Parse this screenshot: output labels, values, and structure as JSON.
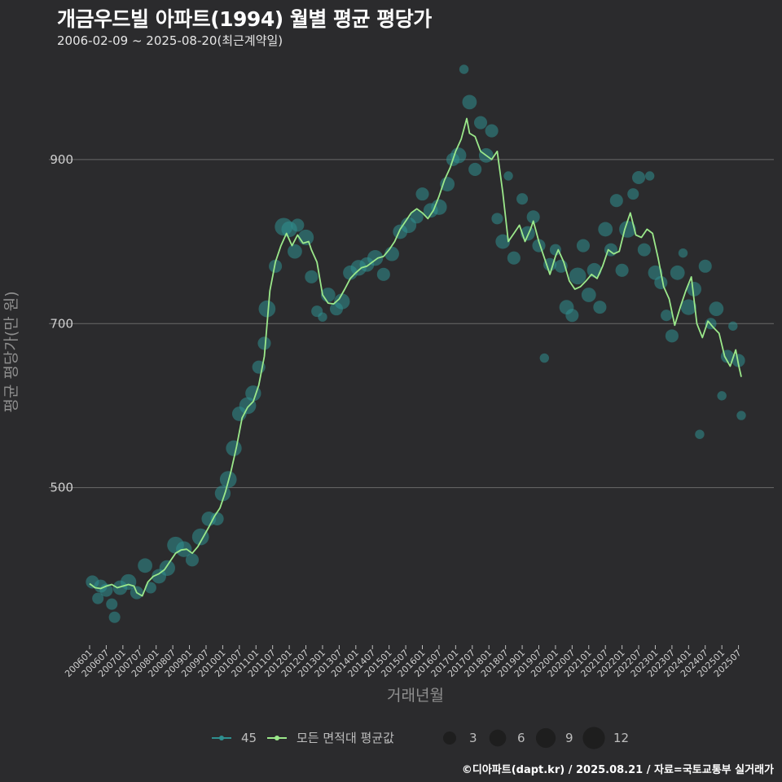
{
  "header": {
    "title": "개금우드빌 아파트(1994) 월별 평균 평당가",
    "subtitle": "2006-02-09 ~ 2025-08-20(최근계약일)"
  },
  "caption": "©디아파트(dapt.kr) / 2025.08.21 / 자료=국토교통부 실거래가",
  "colors": {
    "background": "#2b2b2d",
    "grid": "#6a6a6a",
    "series_area": "#2f8f8f",
    "series_all": "#9be88a",
    "legend_size": "#1e1e1e"
  },
  "chart_data": {
    "type": "line",
    "title": "개금우드빌 아파트(1994) 월별 평균 평당가",
    "xlabel": "거래년월",
    "ylabel": "평균 평당가(만 원)",
    "ylim": [
      310,
      1020
    ],
    "yticks": [
      500,
      700,
      900
    ],
    "grid": true,
    "x_start": "2006-01",
    "x_end": "2025-08",
    "xticks": [
      "200601",
      "200607",
      "200701",
      "200707",
      "200801",
      "200807",
      "200901",
      "200907",
      "201001",
      "201007",
      "201101",
      "201107",
      "201201",
      "201207",
      "201301",
      "201307",
      "201401",
      "201407",
      "201501",
      "201507",
      "201601",
      "201607",
      "201701",
      "201707",
      "201801",
      "201807",
      "201901",
      "201907",
      "202001",
      "202007",
      "202101",
      "202107",
      "202201",
      "202207",
      "202301",
      "202307",
      "202401",
      "202407",
      "202501",
      "202507"
    ],
    "legend_placement": "bottom",
    "series": [
      {
        "name": "45",
        "kind": "points",
        "note": "monthly transactions, marker size = number of trades",
        "points": [
          [
            "2006-02",
            385,
            3
          ],
          [
            "2006-04",
            365,
            2
          ],
          [
            "2006-05",
            380,
            3
          ],
          [
            "2006-07",
            375,
            3
          ],
          [
            "2006-09",
            358,
            2
          ],
          [
            "2006-10",
            342,
            2
          ],
          [
            "2006-12",
            378,
            4
          ],
          [
            "2007-03",
            385,
            5
          ],
          [
            "2007-06",
            372,
            3
          ],
          [
            "2007-09",
            405,
            4
          ],
          [
            "2007-11",
            378,
            2
          ],
          [
            "2008-02",
            392,
            4
          ],
          [
            "2008-05",
            402,
            5
          ],
          [
            "2008-08",
            430,
            6
          ],
          [
            "2008-11",
            425,
            5
          ],
          [
            "2009-02",
            412,
            3
          ],
          [
            "2009-05",
            440,
            6
          ],
          [
            "2009-08",
            462,
            4
          ],
          [
            "2009-11",
            462,
            3
          ],
          [
            "2010-01",
            493,
            5
          ],
          [
            "2010-03",
            510,
            6
          ],
          [
            "2010-05",
            548,
            5
          ],
          [
            "2010-07",
            590,
            4
          ],
          [
            "2010-10",
            600,
            6
          ],
          [
            "2010-12",
            615,
            5
          ],
          [
            "2011-02",
            647,
            3
          ],
          [
            "2011-04",
            676,
            3
          ],
          [
            "2011-05",
            718,
            6
          ],
          [
            "2011-08",
            770,
            3
          ],
          [
            "2011-11",
            818,
            7
          ],
          [
            "2012-01",
            815,
            5
          ],
          [
            "2012-03",
            788,
            4
          ],
          [
            "2012-04",
            820,
            3
          ],
          [
            "2012-07",
            805,
            5
          ],
          [
            "2012-09",
            757,
            3
          ],
          [
            "2012-11",
            715,
            2
          ],
          [
            "2013-01",
            708,
            1
          ],
          [
            "2013-03",
            735,
            4
          ],
          [
            "2013-06",
            718,
            3
          ],
          [
            "2013-08",
            727,
            5
          ],
          [
            "2013-11",
            762,
            4
          ],
          [
            "2014-02",
            768,
            5
          ],
          [
            "2014-05",
            772,
            4
          ],
          [
            "2014-08",
            780,
            5
          ],
          [
            "2014-11",
            760,
            3
          ],
          [
            "2015-02",
            785,
            4
          ],
          [
            "2015-05",
            812,
            4
          ],
          [
            "2015-08",
            820,
            5
          ],
          [
            "2015-11",
            830,
            3
          ],
          [
            "2016-01",
            858,
            3
          ],
          [
            "2016-04",
            838,
            4
          ],
          [
            "2016-07",
            842,
            5
          ],
          [
            "2016-10",
            870,
            4
          ],
          [
            "2016-12",
            900,
            3
          ],
          [
            "2017-02",
            905,
            5
          ],
          [
            "2017-04",
            1010,
            1
          ],
          [
            "2017-06",
            970,
            4
          ],
          [
            "2017-08",
            888,
            3
          ],
          [
            "2017-10",
            945,
            3
          ],
          [
            "2017-12",
            905,
            4
          ],
          [
            "2018-02",
            935,
            3
          ],
          [
            "2018-04",
            828,
            2
          ],
          [
            "2018-06",
            800,
            4
          ],
          [
            "2018-08",
            880,
            1
          ],
          [
            "2018-10",
            780,
            3
          ],
          [
            "2019-01",
            852,
            2
          ],
          [
            "2019-03",
            810,
            4
          ],
          [
            "2019-05",
            830,
            3
          ],
          [
            "2019-07",
            795,
            3
          ],
          [
            "2019-09",
            658,
            1
          ],
          [
            "2019-11",
            772,
            3
          ],
          [
            "2020-01",
            790,
            2
          ],
          [
            "2020-03",
            770,
            3
          ],
          [
            "2020-05",
            720,
            4
          ],
          [
            "2020-07",
            710,
            3
          ],
          [
            "2020-09",
            758,
            6
          ],
          [
            "2020-11",
            795,
            3
          ],
          [
            "2021-01",
            735,
            4
          ],
          [
            "2021-03",
            765,
            4
          ],
          [
            "2021-05",
            720,
            3
          ],
          [
            "2021-07",
            815,
            4
          ],
          [
            "2021-09",
            790,
            3
          ],
          [
            "2021-11",
            850,
            3
          ],
          [
            "2022-01",
            765,
            3
          ],
          [
            "2022-03",
            815,
            6
          ],
          [
            "2022-05",
            858,
            2
          ],
          [
            "2022-07",
            878,
            3
          ],
          [
            "2022-09",
            790,
            3
          ],
          [
            "2022-11",
            880,
            1
          ],
          [
            "2023-01",
            762,
            4
          ],
          [
            "2023-03",
            750,
            3
          ],
          [
            "2023-05",
            710,
            2
          ],
          [
            "2023-07",
            685,
            3
          ],
          [
            "2023-09",
            762,
            4
          ],
          [
            "2023-11",
            786,
            1
          ],
          [
            "2024-01",
            720,
            5
          ],
          [
            "2024-03",
            742,
            4
          ],
          [
            "2024-05",
            565,
            1
          ],
          [
            "2024-07",
            770,
            3
          ],
          [
            "2024-09",
            700,
            2
          ],
          [
            "2024-11",
            718,
            4
          ],
          [
            "2025-01",
            612,
            1
          ],
          [
            "2025-03",
            660,
            3
          ],
          [
            "2025-05",
            697,
            1
          ],
          [
            "2025-07",
            655,
            3
          ],
          [
            "2025-08",
            588,
            1
          ]
        ]
      },
      {
        "name": "모든 면적대 평균값",
        "kind": "line",
        "points": [
          [
            "2006-01",
            383
          ],
          [
            "2006-03",
            378
          ],
          [
            "2006-05",
            377
          ],
          [
            "2006-07",
            380
          ],
          [
            "2006-09",
            382
          ],
          [
            "2006-11",
            378
          ],
          [
            "2007-01",
            380
          ],
          [
            "2007-03",
            382
          ],
          [
            "2007-05",
            380
          ],
          [
            "2007-06",
            372
          ],
          [
            "2007-08",
            368
          ],
          [
            "2007-10",
            385
          ],
          [
            "2007-12",
            392
          ],
          [
            "2008-02",
            395
          ],
          [
            "2008-04",
            400
          ],
          [
            "2008-06",
            410
          ],
          [
            "2008-08",
            420
          ],
          [
            "2008-10",
            424
          ],
          [
            "2008-12",
            425
          ],
          [
            "2009-02",
            420
          ],
          [
            "2009-04",
            428
          ],
          [
            "2009-06",
            440
          ],
          [
            "2009-08",
            452
          ],
          [
            "2009-10",
            465
          ],
          [
            "2009-12",
            475
          ],
          [
            "2010-02",
            495
          ],
          [
            "2010-04",
            520
          ],
          [
            "2010-06",
            550
          ],
          [
            "2010-08",
            585
          ],
          [
            "2010-10",
            598
          ],
          [
            "2010-12",
            605
          ],
          [
            "2011-02",
            625
          ],
          [
            "2011-04",
            660
          ],
          [
            "2011-06",
            740
          ],
          [
            "2011-08",
            775
          ],
          [
            "2011-10",
            795
          ],
          [
            "2011-12",
            810
          ],
          [
            "2012-02",
            795
          ],
          [
            "2012-04",
            808
          ],
          [
            "2012-06",
            798
          ],
          [
            "2012-08",
            800
          ],
          [
            "2012-09",
            790
          ],
          [
            "2012-11",
            775
          ],
          [
            "2013-01",
            735
          ],
          [
            "2013-03",
            725
          ],
          [
            "2013-05",
            724
          ],
          [
            "2013-07",
            730
          ],
          [
            "2013-09",
            742
          ],
          [
            "2013-11",
            755
          ],
          [
            "2014-01",
            762
          ],
          [
            "2014-03",
            768
          ],
          [
            "2014-05",
            770
          ],
          [
            "2014-07",
            775
          ],
          [
            "2014-09",
            780
          ],
          [
            "2014-11",
            782
          ],
          [
            "2015-01",
            790
          ],
          [
            "2015-03",
            800
          ],
          [
            "2015-05",
            815
          ],
          [
            "2015-07",
            825
          ],
          [
            "2015-09",
            835
          ],
          [
            "2015-11",
            840
          ],
          [
            "2016-01",
            835
          ],
          [
            "2016-03",
            828
          ],
          [
            "2016-05",
            838
          ],
          [
            "2016-07",
            855
          ],
          [
            "2016-09",
            875
          ],
          [
            "2016-11",
            890
          ],
          [
            "2017-01",
            910
          ],
          [
            "2017-03",
            925
          ],
          [
            "2017-05",
            950
          ],
          [
            "2017-06",
            932
          ],
          [
            "2017-08",
            928
          ],
          [
            "2017-10",
            910
          ],
          [
            "2017-12",
            905
          ],
          [
            "2018-02",
            900
          ],
          [
            "2018-04",
            910
          ],
          [
            "2018-06",
            860
          ],
          [
            "2018-08",
            800
          ],
          [
            "2018-10",
            810
          ],
          [
            "2018-12",
            820
          ],
          [
            "2019-02",
            800
          ],
          [
            "2019-04",
            815
          ],
          [
            "2019-05",
            825
          ],
          [
            "2019-07",
            800
          ],
          [
            "2019-09",
            780
          ],
          [
            "2019-11",
            760
          ],
          [
            "2020-01",
            782
          ],
          [
            "2020-02",
            790
          ],
          [
            "2020-04",
            775
          ],
          [
            "2020-06",
            752
          ],
          [
            "2020-08",
            742
          ],
          [
            "2020-10",
            745
          ],
          [
            "2020-12",
            752
          ],
          [
            "2021-02",
            760
          ],
          [
            "2021-04",
            755
          ],
          [
            "2021-06",
            770
          ],
          [
            "2021-08",
            790
          ],
          [
            "2021-10",
            785
          ],
          [
            "2021-12",
            788
          ],
          [
            "2022-02",
            815
          ],
          [
            "2022-04",
            835
          ],
          [
            "2022-06",
            808
          ],
          [
            "2022-08",
            805
          ],
          [
            "2022-10",
            815
          ],
          [
            "2022-12",
            810
          ],
          [
            "2023-02",
            780
          ],
          [
            "2023-04",
            745
          ],
          [
            "2023-06",
            730
          ],
          [
            "2023-08",
            698
          ],
          [
            "2023-10",
            720
          ],
          [
            "2023-12",
            740
          ],
          [
            "2024-02",
            757
          ],
          [
            "2024-04",
            700
          ],
          [
            "2024-06",
            683
          ],
          [
            "2024-08",
            703
          ],
          [
            "2024-10",
            695
          ],
          [
            "2024-12",
            688
          ],
          [
            "2025-02",
            660
          ],
          [
            "2025-04",
            648
          ],
          [
            "2025-06",
            668
          ],
          [
            "2025-07",
            650
          ],
          [
            "2025-08",
            635
          ]
        ]
      }
    ],
    "size_legend": [
      3,
      6,
      9,
      12
    ]
  }
}
